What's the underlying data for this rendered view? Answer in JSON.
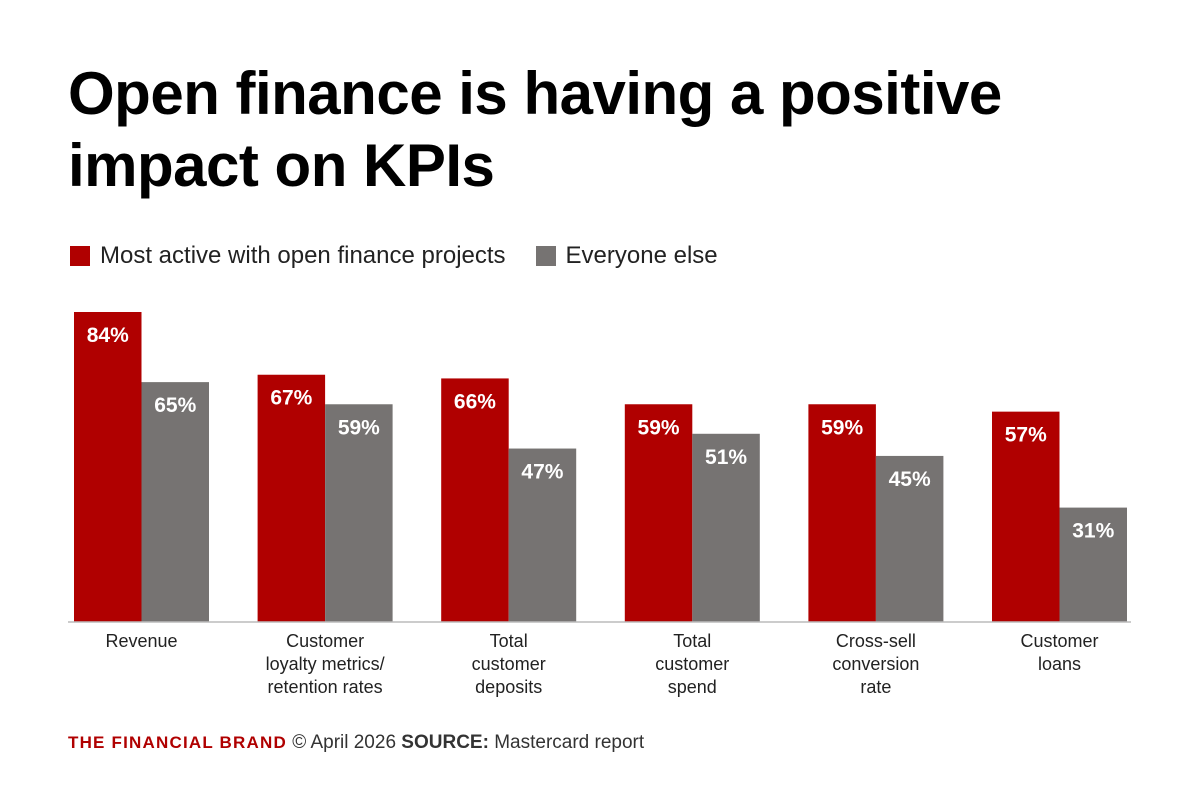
{
  "chart_data": {
    "type": "bar",
    "title": "Open finance is having a positive impact on KPIs",
    "categories": [
      [
        "Revenue"
      ],
      [
        "Customer",
        "loyalty metrics/",
        "retention rates"
      ],
      [
        "Total",
        "customer",
        "deposits"
      ],
      [
        "Total",
        "customer",
        "spend"
      ],
      [
        "Cross-sell",
        "conversion",
        "rate"
      ],
      [
        "Customer",
        "loans"
      ]
    ],
    "series": [
      {
        "name": "Most active with open finance projects",
        "color": "#b00000",
        "values": [
          84,
          67,
          66,
          59,
          59,
          57
        ],
        "labels": [
          "84%",
          "67%",
          "66%",
          "59%",
          "59%",
          "57%"
        ]
      },
      {
        "name": "Everyone else",
        "color": "#767372",
        "values": [
          65,
          59,
          47,
          51,
          45,
          31
        ],
        "labels": [
          "65%",
          "59%",
          "47%",
          "51%",
          "45%",
          "31%"
        ]
      }
    ],
    "ylim": [
      0,
      100
    ],
    "grid": false,
    "legend_position": "top-left"
  },
  "footer": {
    "brand": "THE FINANCIAL BRAND",
    "brand_color": "#b00000",
    "date": "© April 2026",
    "source_label": "SOURCE:",
    "source_text": "Mastercard report"
  }
}
